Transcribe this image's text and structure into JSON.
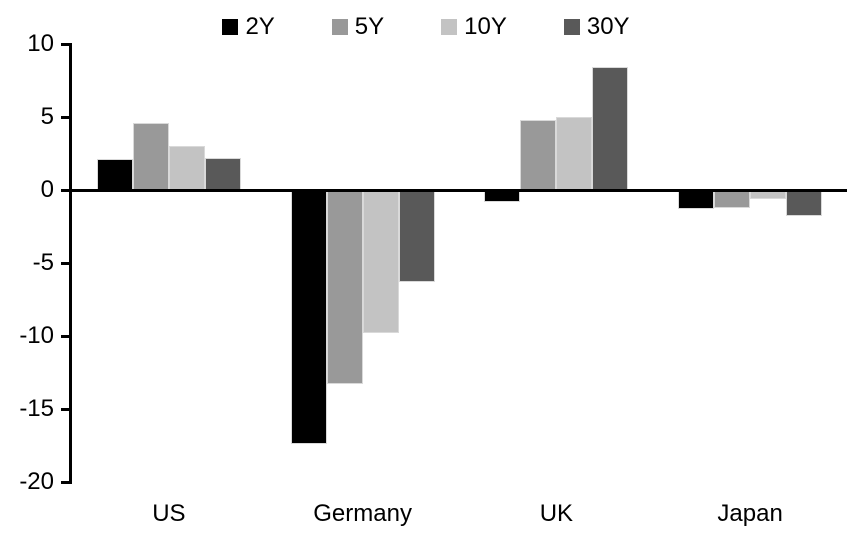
{
  "chart_data": {
    "type": "bar",
    "title": "",
    "xlabel": "",
    "ylabel": "",
    "categories": [
      "US",
      "Germany",
      "UK",
      "Japan"
    ],
    "series": [
      {
        "name": "2Y",
        "color": "#000000",
        "values": [
          2.1,
          -17.4,
          -0.8,
          -1.3
        ]
      },
      {
        "name": "5Y",
        "color": "#999999",
        "values": [
          4.6,
          -13.3,
          4.8,
          -1.2
        ]
      },
      {
        "name": "10Y",
        "color": "#c3c3c3",
        "values": [
          3.0,
          -9.8,
          5.0,
          -0.6
        ]
      },
      {
        "name": "30Y",
        "color": "#595959",
        "values": [
          2.2,
          -6.3,
          8.4,
          -1.8
        ]
      }
    ],
    "ylim": [
      -20,
      10
    ],
    "yticks": [
      10,
      5,
      0,
      -5,
      -10,
      -15,
      -20
    ],
    "grid": false,
    "legend_position": "top-center",
    "axis_color": "#000000",
    "bar_border_color": "#d9d9d9",
    "background_color": "#ffffff"
  }
}
